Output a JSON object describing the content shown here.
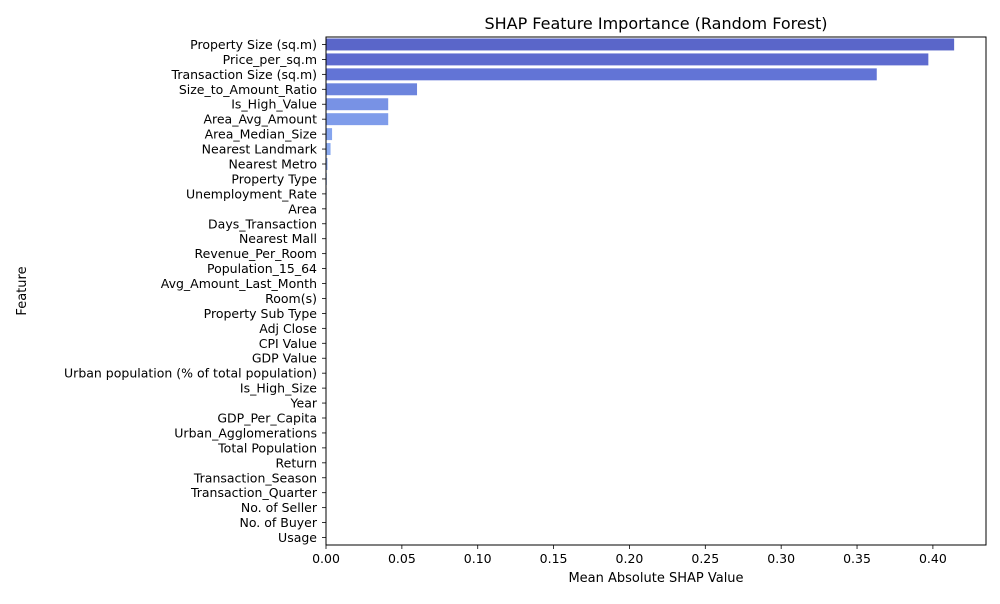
{
  "chart_data": {
    "type": "bar",
    "orientation": "horizontal",
    "title": "SHAP Feature Importance (Random Forest)",
    "xlabel": "Mean Absolute SHAP Value",
    "ylabel": "Feature",
    "xlim": [
      0,
      0.435
    ],
    "xticks": [
      "0.00",
      "0.05",
      "0.10",
      "0.15",
      "0.20",
      "0.25",
      "0.30",
      "0.35",
      "0.40"
    ],
    "xtick_values": [
      0,
      0.05,
      0.1,
      0.15,
      0.2,
      0.25,
      0.3,
      0.35,
      0.4
    ],
    "grid": false,
    "categories": [
      "Property Size (sq.m)",
      "Price_per_sq.m",
      "Transaction Size (sq.m)",
      "Size_to_Amount_Ratio",
      "Is_High_Value",
      "Area_Avg_Amount",
      "Area_Median_Size",
      "Nearest Landmark",
      "Nearest Metro",
      "Property Type",
      "Unemployment_Rate",
      "Area",
      "Days_Transaction",
      "Nearest Mall",
      "Revenue_Per_Room",
      "Population_15_64",
      "Avg_Amount_Last_Month",
      "Room(s)",
      "Property Sub Type",
      "Adj Close",
      "CPI Value",
      "GDP Value",
      "Urban population (% of total population)",
      "Is_High_Size",
      "Year",
      "GDP_Per_Capita",
      "Urban_Agglomerations",
      "Total Population",
      "Return",
      "Transaction_Season",
      "Transaction_Quarter",
      "No. of Seller",
      "No. of Buyer",
      "Usage"
    ],
    "values": [
      0.414,
      0.397,
      0.363,
      0.06,
      0.041,
      0.041,
      0.004,
      0.003,
      0.001,
      0.0005,
      0.0004,
      0.0003,
      0.0003,
      0.0002,
      0.0002,
      0.0002,
      0.0002,
      0.0001,
      0.0001,
      0.0001,
      0.0001,
      0.0001,
      0.0001,
      0.0001,
      0.0001,
      0.0001,
      0.0001,
      0.0001,
      0.0001,
      0.0001,
      0.0001,
      0.0001,
      0.0001,
      0.0001
    ],
    "colors": [
      "#5a66c9",
      "#5e6bcf",
      "#6274d6",
      "#6c84dd",
      "#7892e5",
      "#7f9cea",
      "#85a4ee",
      "#8aaaf0"
    ]
  }
}
